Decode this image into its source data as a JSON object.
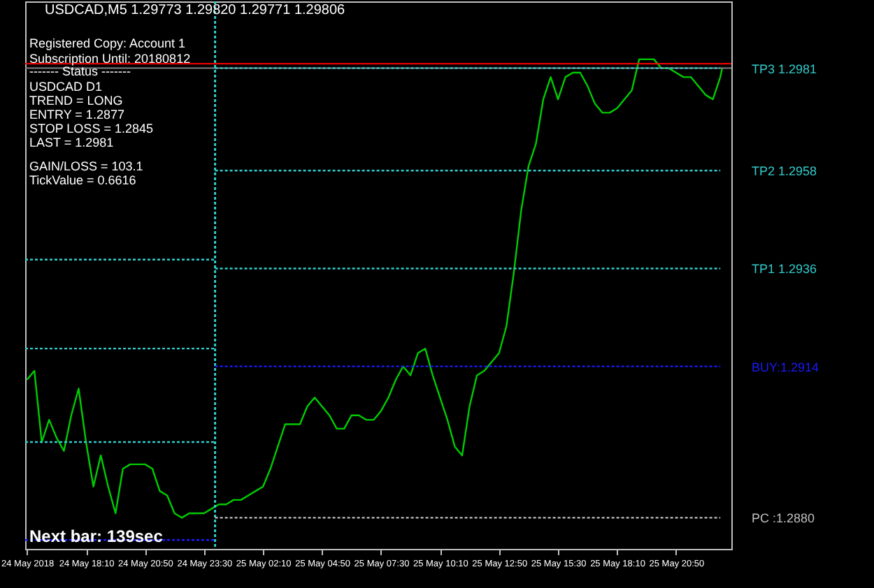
{
  "chart_data": {
    "type": "line",
    "title": "USDCAD,M5 1.29773 1.29820 1.29771 1.29806",
    "annotations": [
      "Registered Copy: Account 1",
      "Subscription Until: 20180812",
      "------- Status -------",
      "USDCAD D1",
      "TREND = LONG",
      "ENTRY = 1.2877",
      "STOP LOSS = 1.2845",
      "LAST = 1.2981",
      "GAIN/LOSS = 103.1",
      "TickValue = 0.6616",
      "Next bar: 139sec"
    ],
    "xlim": [
      "2018-05-24T15:25",
      "2018-05-25T23:20"
    ],
    "xticks": [
      {
        "value": "2018-05-24T15:30",
        "label": "24 May 2018"
      },
      {
        "value": "2018-05-24T18:10",
        "label": "24 May 18:10"
      },
      {
        "value": "2018-05-24T20:50",
        "label": "24 May 20:50"
      },
      {
        "value": "2018-05-24T23:30",
        "label": "24 May 23:30"
      },
      {
        "value": "2018-05-25T02:10",
        "label": "25 May 02:10"
      },
      {
        "value": "2018-05-25T04:50",
        "label": "25 May 04:50"
      },
      {
        "value": "2018-05-25T07:30",
        "label": "25 May 07:30"
      },
      {
        "value": "2018-05-25T10:10",
        "label": "25 May 10:10"
      },
      {
        "value": "2018-05-25T12:50",
        "label": "25 May 12:50"
      },
      {
        "value": "2018-05-25T15:30",
        "label": "25 May 15:30"
      },
      {
        "value": "2018-05-25T18:10",
        "label": "25 May 18:10"
      },
      {
        "value": "2018-05-25T20:50",
        "label": "25 May 20:50"
      }
    ],
    "ylim": [
      1.2873,
      1.2996
    ],
    "yticks": [
      {
        "value": 1.2981,
        "label": "TP3 1.2981"
      },
      {
        "value": 1.2958,
        "label": "TP2 1.2958"
      },
      {
        "value": 1.2936,
        "label": "TP1 1.2936"
      },
      {
        "value": 1.2914,
        "label": "BUY:1.2914"
      },
      {
        "value": 1.288,
        "label": "PC :1.2880"
      }
    ],
    "series": [
      {
        "color": "#00cc00",
        "line_style": "solid",
        "x": [
          "2018-05-24T15:30",
          "2018-05-24T15:50",
          "2018-05-24T16:10",
          "2018-05-24T16:30",
          "2018-05-24T16:50",
          "2018-05-24T17:10",
          "2018-05-24T17:30",
          "2018-05-24T17:50",
          "2018-05-24T18:10",
          "2018-05-24T18:30",
          "2018-05-24T18:50",
          "2018-05-24T19:10",
          "2018-05-24T19:30",
          "2018-05-24T19:50",
          "2018-05-24T20:10",
          "2018-05-24T20:30",
          "2018-05-24T20:50",
          "2018-05-24T21:10",
          "2018-05-24T21:30",
          "2018-05-24T21:50",
          "2018-05-24T22:10",
          "2018-05-24T22:30",
          "2018-05-24T22:50",
          "2018-05-24T23:10",
          "2018-05-24T23:30",
          "2018-05-24T23:50",
          "2018-05-25T00:10",
          "2018-05-25T00:30",
          "2018-05-25T00:50",
          "2018-05-25T01:10",
          "2018-05-25T01:30",
          "2018-05-25T01:50",
          "2018-05-25T02:10",
          "2018-05-25T02:30",
          "2018-05-25T02:50",
          "2018-05-25T03:10",
          "2018-05-25T03:30",
          "2018-05-25T03:50",
          "2018-05-25T04:10",
          "2018-05-25T04:30",
          "2018-05-25T04:50",
          "2018-05-25T05:10",
          "2018-05-25T05:30",
          "2018-05-25T05:50",
          "2018-05-25T06:10",
          "2018-05-25T06:30",
          "2018-05-25T06:50",
          "2018-05-25T07:10",
          "2018-05-25T07:30",
          "2018-05-25T07:50",
          "2018-05-25T08:10",
          "2018-05-25T08:30",
          "2018-05-25T08:50",
          "2018-05-25T09:10",
          "2018-05-25T09:30",
          "2018-05-25T09:50",
          "2018-05-25T10:10",
          "2018-05-25T10:30",
          "2018-05-25T10:50",
          "2018-05-25T11:10",
          "2018-05-25T11:30",
          "2018-05-25T11:50",
          "2018-05-25T12:10",
          "2018-05-25T12:30",
          "2018-05-25T12:50",
          "2018-05-25T13:10",
          "2018-05-25T13:30",
          "2018-05-25T13:50",
          "2018-05-25T14:10",
          "2018-05-25T14:30",
          "2018-05-25T14:50",
          "2018-05-25T15:10",
          "2018-05-25T15:30",
          "2018-05-25T15:50",
          "2018-05-25T16:10",
          "2018-05-25T16:30",
          "2018-05-25T16:50",
          "2018-05-25T17:10",
          "2018-05-25T17:30",
          "2018-05-25T17:50",
          "2018-05-25T18:10",
          "2018-05-25T18:30",
          "2018-05-25T18:50",
          "2018-05-25T19:10",
          "2018-05-25T19:30",
          "2018-05-25T19:50",
          "2018-05-25T20:10",
          "2018-05-25T20:30",
          "2018-05-25T20:50",
          "2018-05-25T21:10",
          "2018-05-25T21:30",
          "2018-05-25T21:50",
          "2018-05-25T22:10",
          "2018-05-25T22:30",
          "2018-05-25T22:50",
          "2018-05-25T22:55"
        ],
        "values": [
          1.2911,
          1.2913,
          1.2897,
          1.2902,
          1.2898,
          1.2895,
          1.2903,
          1.2909,
          1.2897,
          1.2887,
          1.2894,
          1.2887,
          1.2881,
          1.2891,
          1.2892,
          1.2892,
          1.2892,
          1.2891,
          1.2886,
          1.2885,
          1.2881,
          1.288,
          1.2881,
          1.2881,
          1.2881,
          1.2882,
          1.2883,
          1.2883,
          1.2884,
          1.2884,
          1.2885,
          1.2886,
          1.2887,
          1.2891,
          1.2896,
          1.2901,
          1.2901,
          1.2901,
          1.2905,
          1.2907,
          1.2905,
          1.2903,
          1.29,
          1.29,
          1.2903,
          1.2903,
          1.2902,
          1.2902,
          1.2904,
          1.2907,
          1.2911,
          1.2914,
          1.2912,
          1.2917,
          1.2918,
          1.2912,
          1.2907,
          1.2902,
          1.2896,
          1.2894,
          1.2905,
          1.2912,
          1.2913,
          1.2915,
          1.2917,
          1.2923,
          1.2935,
          1.2949,
          1.2959,
          1.2964,
          1.2974,
          1.2979,
          1.2974,
          1.2979,
          1.298,
          1.298,
          1.2977,
          1.2973,
          1.2971,
          1.2971,
          1.2972,
          1.2974,
          1.2976,
          1.2983,
          1.2983,
          1.2983,
          1.2981,
          1.2981,
          1.298,
          1.2979,
          1.2979,
          1.2977,
          1.2975,
          1.2974,
          1.2979,
          1.2981
        ]
      },
      {
        "color": "#33cccc",
        "line_style": "dotted",
        "x": [
          "2018-05-25T00:00",
          "2018-05-25T22:50"
        ],
        "values": [
          1.2981,
          1.2981
        ]
      },
      {
        "color": "#33cccc",
        "line_style": "dotted",
        "x": [
          "2018-05-25T00:00",
          "2018-05-25T22:50"
        ],
        "values": [
          1.2958,
          1.2958
        ]
      },
      {
        "color": "#33cccc",
        "line_style": "dotted",
        "x": [
          "2018-05-25T00:00",
          "2018-05-25T22:50"
        ],
        "values": [
          1.2936,
          1.2936
        ]
      },
      {
        "color": "#1a1aff",
        "line_style": "dotted",
        "x": [
          "2018-05-25T00:00",
          "2018-05-25T22:50"
        ],
        "values": [
          1.2914,
          1.2914
        ]
      },
      {
        "color": "#c0c0c0",
        "line_style": "dotted",
        "x": [
          "2018-05-25T00:00",
          "2018-05-25T22:50"
        ],
        "values": [
          1.288,
          1.288
        ]
      },
      {
        "color": "#33cccc",
        "line_style": "dotted",
        "x": [
          "2018-05-24T15:25",
          "2018-05-25T00:00"
        ],
        "values": [
          1.2938,
          1.2938
        ]
      },
      {
        "color": "#33cccc",
        "line_style": "dotted",
        "x": [
          "2018-05-24T15:25",
          "2018-05-25T00:00"
        ],
        "values": [
          1.2918,
          1.2918
        ]
      },
      {
        "color": "#33cccc",
        "line_style": "dotted",
        "x": [
          "2018-05-24T15:25",
          "2018-05-25T00:00"
        ],
        "values": [
          1.2897,
          1.2897
        ]
      },
      {
        "color": "#1a1aff",
        "line_style": "dotted",
        "x": [
          "2018-05-24T15:25",
          "2018-05-25T00:00"
        ],
        "values": [
          1.2875,
          1.2875
        ]
      }
    ],
    "ref_lines": [
      {
        "axis": "x",
        "value": "2018-05-25T00:00",
        "color": "#33cccc",
        "line_style": "dotted"
      },
      {
        "axis": "y",
        "value": 1.2982,
        "color": "#ff0000",
        "line_style": "solid"
      },
      {
        "axis": "y",
        "value": 1.2981,
        "color": "#808080",
        "line_style": "solid"
      }
    ]
  }
}
